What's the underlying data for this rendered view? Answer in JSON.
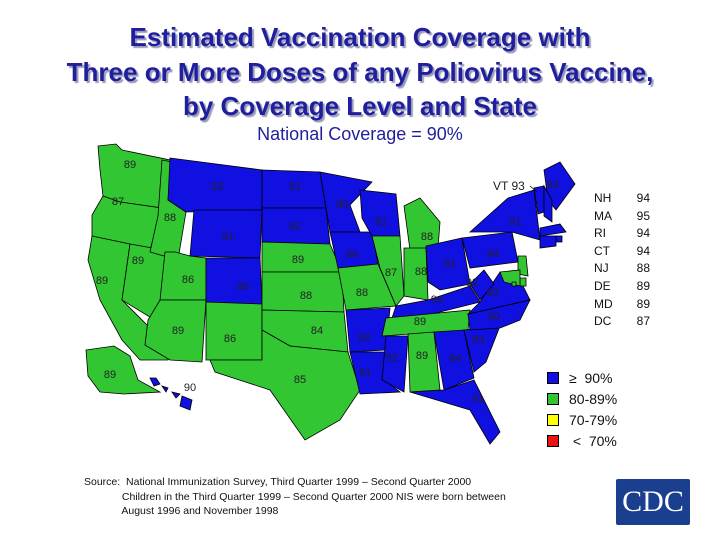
{
  "title_lines": [
    "Estimated Vaccination Coverage with",
    "Three or More Doses of any Poliovirus Vaccine,",
    "by Coverage Level and State"
  ],
  "subtitle": "National Coverage = 90%",
  "colors": {
    "high": "#1010e0",
    "mid": "#33c633",
    "low": "#ffff00",
    "verylow": "#ee1111",
    "border": "#000000"
  },
  "states": [
    {
      "id": "WA",
      "value": 89,
      "level": "mid"
    },
    {
      "id": "OR",
      "value": 87,
      "level": "mid"
    },
    {
      "id": "CA",
      "value": 89,
      "level": "mid"
    },
    {
      "id": "NV",
      "value": 89,
      "level": "mid"
    },
    {
      "id": "ID",
      "value": 88,
      "level": "mid"
    },
    {
      "id": "MT",
      "value": 93,
      "level": "high"
    },
    {
      "id": "WY",
      "value": 91,
      "level": "high"
    },
    {
      "id": "UT",
      "value": 86,
      "level": "mid"
    },
    {
      "id": "AZ",
      "value": 89,
      "level": "mid"
    },
    {
      "id": "CO",
      "value": 90,
      "level": "high"
    },
    {
      "id": "NM",
      "value": 86,
      "level": "mid"
    },
    {
      "id": "ND",
      "value": 91,
      "level": "high"
    },
    {
      "id": "SD",
      "value": 92,
      "level": "high"
    },
    {
      "id": "NE",
      "value": 89,
      "level": "mid"
    },
    {
      "id": "KS",
      "value": 88,
      "level": "mid"
    },
    {
      "id": "OK",
      "value": 84,
      "level": "mid"
    },
    {
      "id": "TX",
      "value": 85,
      "level": "mid"
    },
    {
      "id": "MN",
      "value": 95,
      "level": "high"
    },
    {
      "id": "IA",
      "value": 94,
      "level": "high"
    },
    {
      "id": "MO",
      "value": 88,
      "level": "mid"
    },
    {
      "id": "AR",
      "value": 93,
      "level": "high"
    },
    {
      "id": "LA",
      "value": 91,
      "level": "high"
    },
    {
      "id": "WI",
      "value": 91,
      "level": "high"
    },
    {
      "id": "IL",
      "value": 87,
      "level": "mid"
    },
    {
      "id": "MI",
      "value": 88,
      "level": "mid"
    },
    {
      "id": "IN",
      "value": 88,
      "level": "mid"
    },
    {
      "id": "OH",
      "value": 91,
      "level": "high"
    },
    {
      "id": "KY",
      "value": 94,
      "level": "high"
    },
    {
      "id": "TN",
      "value": 89,
      "level": "mid"
    },
    {
      "id": "MS",
      "value": 92,
      "level": "high"
    },
    {
      "id": "AL",
      "value": 89,
      "level": "mid"
    },
    {
      "id": "GA",
      "value": 94,
      "level": "high"
    },
    {
      "id": "FL",
      "value": 91,
      "level": "high"
    },
    {
      "id": "SC",
      "value": 93,
      "level": "high"
    },
    {
      "id": "NC",
      "value": 90,
      "level": "high"
    },
    {
      "id": "VA",
      "value": 92,
      "level": "high"
    },
    {
      "id": "WV",
      "value": 92,
      "level": "high"
    },
    {
      "id": "PA",
      "value": 94,
      "level": "high"
    },
    {
      "id": "NY",
      "value": 91,
      "level": "high"
    },
    {
      "id": "VT",
      "value": 93,
      "level": "high"
    },
    {
      "id": "ME",
      "value": 92,
      "level": "high"
    },
    {
      "id": "NH",
      "value": 94,
      "level": "high"
    },
    {
      "id": "MA",
      "value": 95,
      "level": "high"
    },
    {
      "id": "RI",
      "value": 94,
      "level": "high"
    },
    {
      "id": "CT",
      "value": 94,
      "level": "high"
    },
    {
      "id": "NJ",
      "value": 88,
      "level": "mid"
    },
    {
      "id": "DE",
      "value": 89,
      "level": "mid"
    },
    {
      "id": "MD",
      "value": 89,
      "level": "mid"
    },
    {
      "id": "DC",
      "value": 87,
      "level": "mid"
    },
    {
      "id": "AK",
      "value": 89,
      "level": "mid"
    },
    {
      "id": "HI",
      "value": 90,
      "level": "high"
    }
  ],
  "vt_label": "VT 93",
  "small_states": [
    {
      "state": "NH",
      "value": "94"
    },
    {
      "state": "MA",
      "value": "95"
    },
    {
      "state": "RI",
      "value": "94"
    },
    {
      "state": "CT",
      "value": "94"
    },
    {
      "state": "NJ",
      "value": "88"
    },
    {
      "state": "DE",
      "value": "89"
    },
    {
      "state": "MD",
      "value": "89"
    },
    {
      "state": "DC",
      "value": "87"
    }
  ],
  "legend": [
    {
      "label": "≥  90%",
      "level": "high"
    },
    {
      "label": "80-89%",
      "level": "mid"
    },
    {
      "label": "70-79%",
      "level": "low"
    },
    {
      "label": " <  70%",
      "level": "verylow"
    }
  ],
  "source_lines": [
    "Source:  National Immunization Survey, Third Quarter 1999 – Second Quarter 2000",
    "             Children in the Third Quarter 1999 – Second Quarter 2000 NIS were born between",
    "             August 1996 and November 1998"
  ],
  "logo_text": "CDC"
}
